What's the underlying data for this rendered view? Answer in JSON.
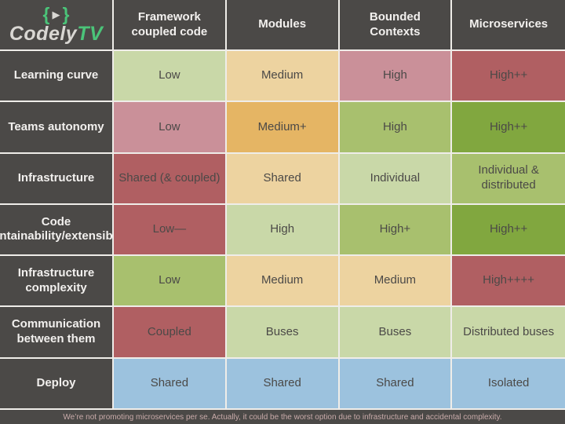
{
  "brand": {
    "brace_left": "{",
    "play_icon": "▶",
    "brace_right": "}",
    "name_gray": "Codely",
    "name_green": "TV"
  },
  "columns": [
    "Framework coupled code",
    "Modules",
    "Bounded Contexts",
    "Microservices"
  ],
  "rows": [
    {
      "label": "Learning curve",
      "cells": [
        {
          "text": "Low",
          "color": "light-green"
        },
        {
          "text": "Medium",
          "color": "tan"
        },
        {
          "text": "High",
          "color": "pink"
        },
        {
          "text": "High++",
          "color": "red"
        }
      ]
    },
    {
      "label": "Teams autonomy",
      "cells": [
        {
          "text": "Low",
          "color": "pink"
        },
        {
          "text": "Medium+",
          "color": "orange"
        },
        {
          "text": "High",
          "color": "mid-green"
        },
        {
          "text": "High++",
          "color": "olive-green"
        }
      ]
    },
    {
      "label": "Infrastructure",
      "cells": [
        {
          "text": "Shared (& coupled)",
          "color": "red"
        },
        {
          "text": "Shared",
          "color": "tan"
        },
        {
          "text": "Individual",
          "color": "light-green"
        },
        {
          "text": "Individual & distributed",
          "color": "mid-green"
        }
      ]
    },
    {
      "label": "Code maintainability/extensibility",
      "cells": [
        {
          "text": "Low—",
          "color": "red"
        },
        {
          "text": "High",
          "color": "light-green"
        },
        {
          "text": "High+",
          "color": "mid-green"
        },
        {
          "text": "High++",
          "color": "olive-green"
        }
      ]
    },
    {
      "label": "Infrastructure complexity",
      "cells": [
        {
          "text": "Low",
          "color": "mid-green"
        },
        {
          "text": "Medium",
          "color": "tan"
        },
        {
          "text": "Medium",
          "color": "tan"
        },
        {
          "text": "High++++",
          "color": "red"
        }
      ]
    },
    {
      "label": "Communication between them",
      "cells": [
        {
          "text": "Coupled",
          "color": "red"
        },
        {
          "text": "Buses",
          "color": "light-green"
        },
        {
          "text": "Buses",
          "color": "light-green"
        },
        {
          "text": "Distributed buses",
          "color": "light-green"
        }
      ]
    },
    {
      "label": "Deploy",
      "cells": [
        {
          "text": "Shared",
          "color": "blue"
        },
        {
          "text": "Shared",
          "color": "blue"
        },
        {
          "text": "Shared",
          "color": "blue"
        },
        {
          "text": "Isolated",
          "color": "blue"
        }
      ]
    }
  ],
  "footer": {
    "note": "We’re not promoting microservices per se. Actually, it could be the worst option due to infrastructure and accidental complexity."
  },
  "palette": {
    "dark_gray": "#4b4947",
    "border_white": "#efede9",
    "light_green": "#c9d8a8",
    "mid_green": "#a8c06e",
    "olive_green": "#81a73f",
    "tan": "#edd3a0",
    "orange": "#e5b564",
    "pink": "#ca9099",
    "red": "#b05f62",
    "blue": "#9cc2de",
    "brand_green": "#4bc479",
    "brand_gray": "#d9d7d3",
    "footer_text": "#c9abaa"
  },
  "chart_data": {
    "type": "table",
    "columns": [
      "",
      "Framework coupled code",
      "Modules",
      "Bounded Contexts",
      "Microservices"
    ],
    "rows": [
      [
        "Learning curve",
        "Low",
        "Medium",
        "High",
        "High++"
      ],
      [
        "Teams autonomy",
        "Low",
        "Medium+",
        "High",
        "High++"
      ],
      [
        "Infrastructure",
        "Shared (& coupled)",
        "Shared",
        "Individual",
        "Individual & distributed"
      ],
      [
        "Code maintainability/extensibility",
        "Low—",
        "High",
        "High+",
        "High++"
      ],
      [
        "Infrastructure complexity",
        "Low",
        "Medium",
        "Medium",
        "High++++"
      ],
      [
        "Communication between them",
        "Coupled",
        "Buses",
        "Buses",
        "Distributed buses"
      ],
      [
        "Deploy",
        "Shared",
        "Shared",
        "Shared",
        "Isolated"
      ]
    ],
    "note": "We’re not promoting microservices per se. Actually, it could be the worst option due to infrastructure and accidental complexity.",
    "legend_semantics": "green = good, yellow/orange = medium, pink/red = bad, blue = neutral"
  }
}
